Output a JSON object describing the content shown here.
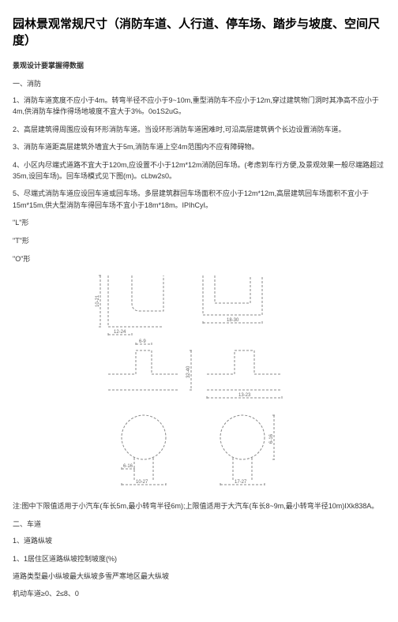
{
  "title": "园林景观常规尺寸（消防车道、人行道、停车场、踏步与坡度、空间尺度）",
  "subtitle": "景观设计要掌握得数据",
  "section1_head": "一、消防",
  "p1": "1、消防车道宽度不应小于4m。转弯半径不应小于9~10m,重型消防车不应小于12m,穿过建筑物门洞时其净高不应小于4m,供消防车操作得场地坡度不宜大于3%。0o1S2uG。",
  "p2": "2、高层建筑得周围应设有环形消防车道。当设环形消防车道困难时,可沿高层建筑俩个长边设置消防车道。",
  "p3": "3、消防车道距高层建筑外墙宜大于5m,消防车道上空4m范围内不应有障碍物。",
  "p4": "4、小区内尽端式道路不宜大于120m,应设置不小于12m*12m消防回车场。(考虑到车行方便,及景观效果一般尽端路超过35m,设回车场)。回车场模式见下图(m)。cLbw2s0。",
  "p5": "5、尽端式消防车道应设回车道或回车场。多层建筑群回车场面积不应小于12m*12m,高层建筑回车场面积不宜小于15m*15m,供大型消防车得回车场不宜小于18m*18m。IPIhCyI。",
  "shape_l": "\"L\"形",
  "shape_t": "\"T\"形",
  "shape_o": "\"O\"形",
  "diagram": {
    "labels": {
      "a": "12-24",
      "b": "18-30",
      "c": "10-21",
      "d": "32-40",
      "e": "6-9",
      "f": "13-23",
      "g": "6-16",
      "h": "10-27",
      "i": "17-27"
    },
    "stroke": "#888888",
    "dash": "3,2",
    "text_color": "#666666",
    "text_size": 6
  },
  "note": "注:图中下限值适用于小汽车(车长5m,最小转弯半径6m);上限值适用于大汽车(车长8~9m,最小转弯半径10m)IXk838A。",
  "section2_head": "二、车道",
  "p2_1": "1、道路纵坡",
  "p2_1_1": "1、1居住区道路纵坡控制坡度(%)",
  "p2_1_2": "道路类型最小纵坡最大纵坡多雪严寒地区最大纵坡",
  "p2_1_3": "机动车道≥0、2≤8、0"
}
